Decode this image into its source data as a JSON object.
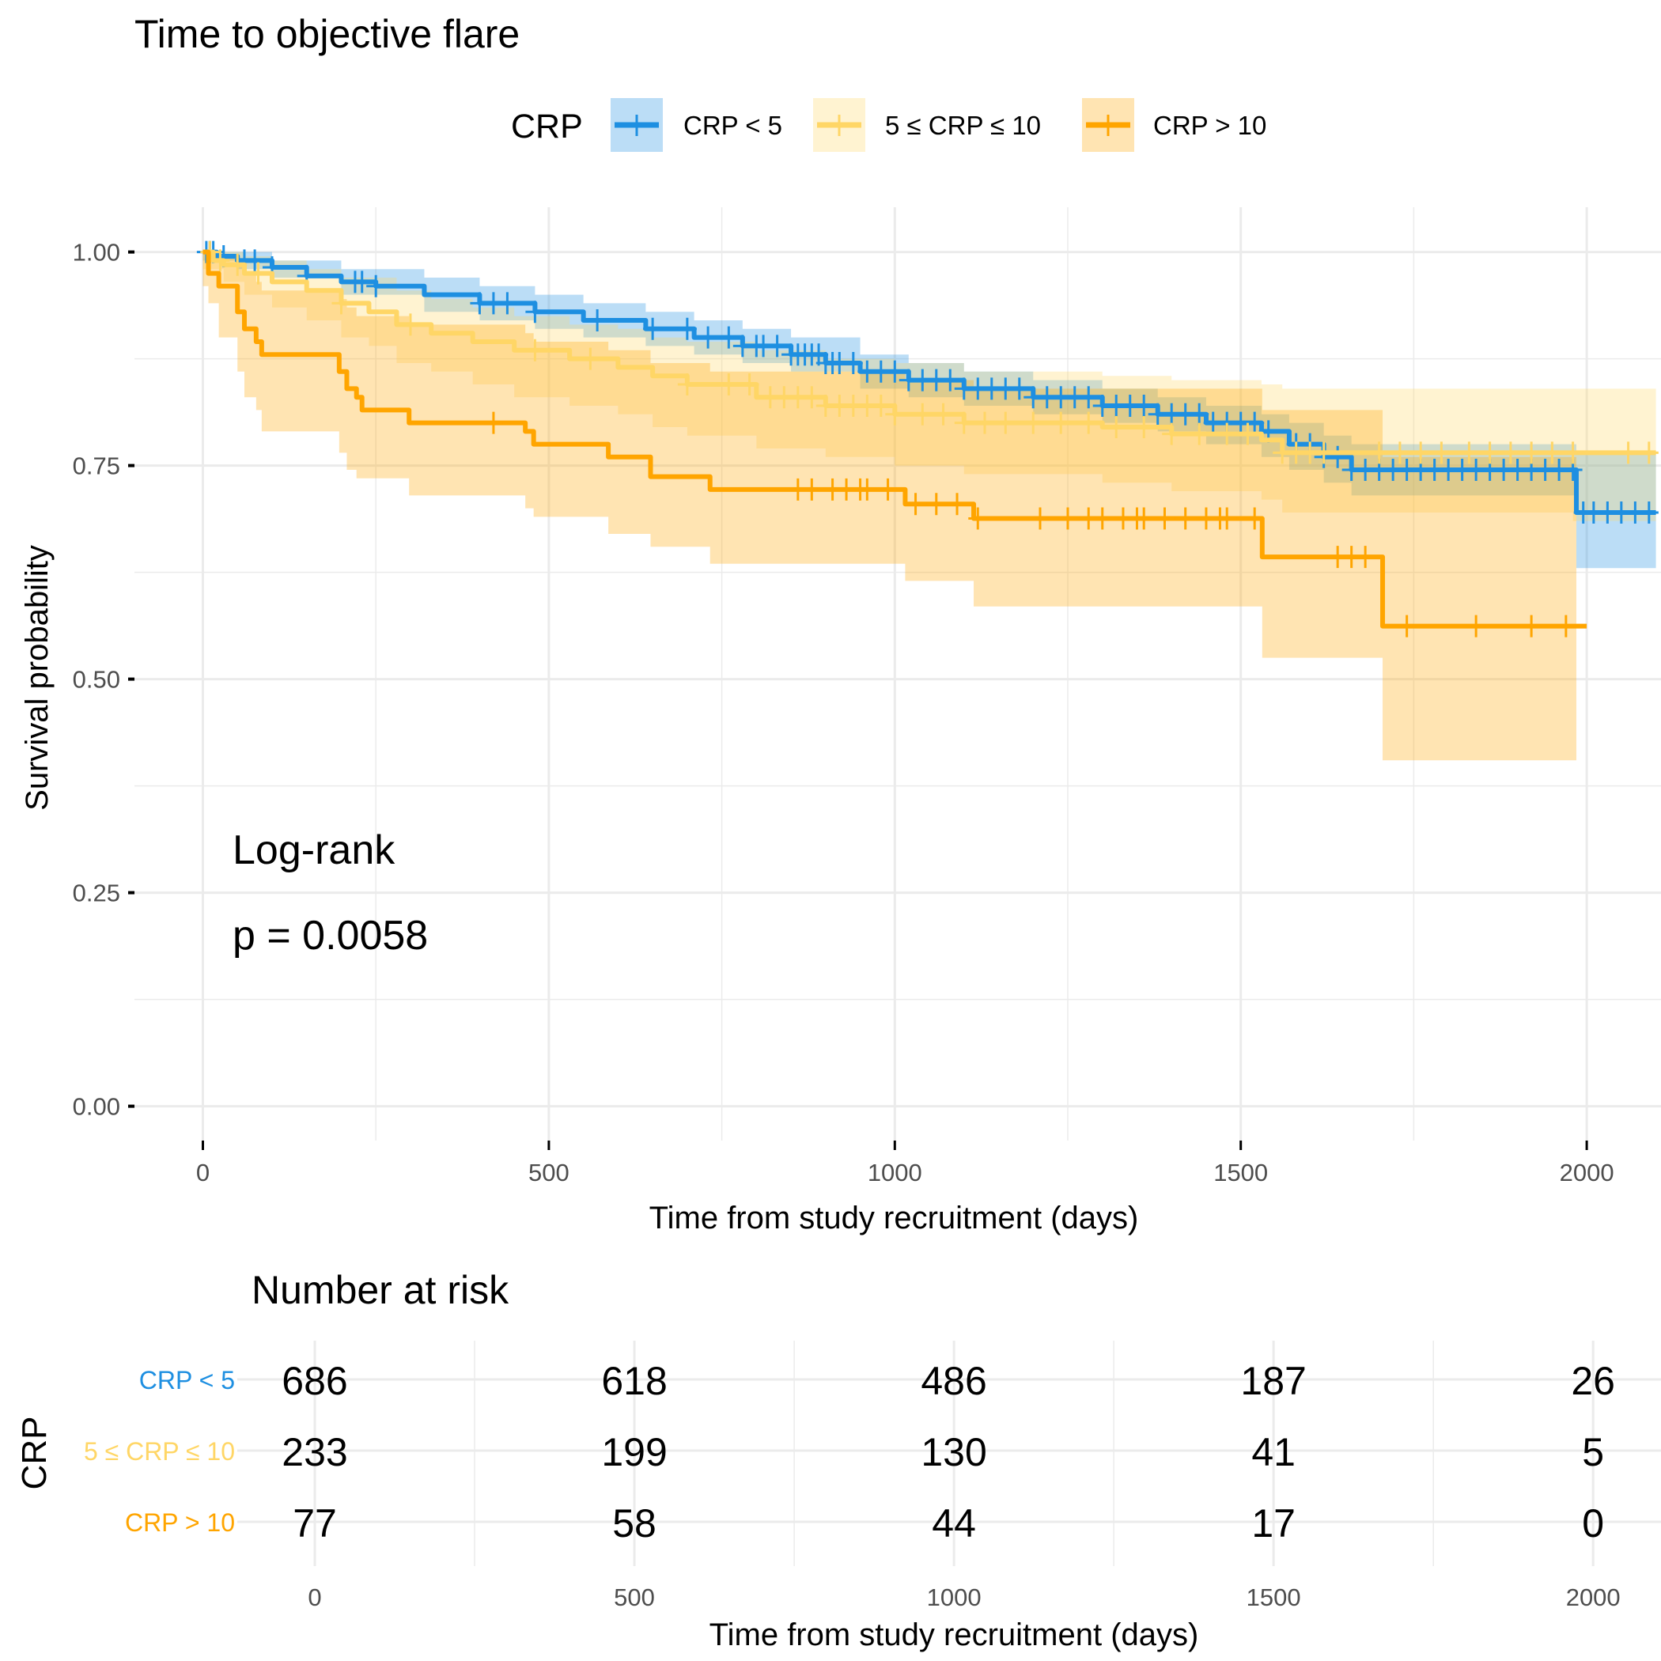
{
  "chart_data": {
    "type": "line",
    "subtype": "kaplan-meier",
    "title": "Time to objective flare",
    "xlabel": "Time from study recruitment (days)",
    "ylabel": "Survival probability",
    "xlim": [
      -100,
      2100
    ],
    "ylim": [
      -0.04,
      1.04
    ],
    "x_ticks": [
      0,
      500,
      1000,
      1500,
      2000
    ],
    "y_ticks": [
      0.0,
      0.25,
      0.5,
      0.75,
      1.0
    ],
    "y_tick_labels": [
      "0.00",
      "0.25",
      "0.50",
      "0.75",
      "1.00"
    ],
    "grid": true,
    "legend": {
      "title": "CRP",
      "position": "top",
      "entries": [
        "CRP < 5",
        "5 ≤ CRP ≤ 10",
        "CRP > 10"
      ]
    },
    "annotation": {
      "line1": "Log-rank",
      "line2": "p = 0.0058"
    },
    "series": [
      {
        "name": "CRP < 5",
        "color": "#1e8fe1",
        "fill": "#1e8fe1",
        "steps": [
          [
            0,
            1.0
          ],
          [
            20,
            0.995
          ],
          [
            50,
            0.99
          ],
          [
            100,
            0.982
          ],
          [
            150,
            0.972
          ],
          [
            200,
            0.965
          ],
          [
            250,
            0.96
          ],
          [
            320,
            0.95
          ],
          [
            400,
            0.94
          ],
          [
            480,
            0.93
          ],
          [
            550,
            0.92
          ],
          [
            640,
            0.91
          ],
          [
            710,
            0.9
          ],
          [
            780,
            0.89
          ],
          [
            850,
            0.88
          ],
          [
            900,
            0.87
          ],
          [
            950,
            0.86
          ],
          [
            1020,
            0.85
          ],
          [
            1100,
            0.84
          ],
          [
            1200,
            0.83
          ],
          [
            1300,
            0.82
          ],
          [
            1380,
            0.81
          ],
          [
            1450,
            0.8
          ],
          [
            1530,
            0.79
          ],
          [
            1570,
            0.775
          ],
          [
            1620,
            0.76
          ],
          [
            1660,
            0.745
          ],
          [
            1985,
            0.695
          ],
          [
            2100,
            0.695
          ]
        ],
        "ci_lower": [
          [
            0,
            0.99
          ],
          [
            50,
            0.98
          ],
          [
            100,
            0.97
          ],
          [
            200,
            0.95
          ],
          [
            320,
            0.93
          ],
          [
            400,
            0.92
          ],
          [
            480,
            0.91
          ],
          [
            550,
            0.9
          ],
          [
            640,
            0.89
          ],
          [
            710,
            0.88
          ],
          [
            780,
            0.87
          ],
          [
            850,
            0.86
          ],
          [
            950,
            0.84
          ],
          [
            1020,
            0.83
          ],
          [
            1100,
            0.82
          ],
          [
            1200,
            0.81
          ],
          [
            1300,
            0.8
          ],
          [
            1380,
            0.79
          ],
          [
            1450,
            0.775
          ],
          [
            1530,
            0.76
          ],
          [
            1570,
            0.745
          ],
          [
            1620,
            0.73
          ],
          [
            1660,
            0.715
          ],
          [
            1985,
            0.63
          ],
          [
            2100,
            0.63
          ]
        ],
        "ci_upper": [
          [
            0,
            1.0
          ],
          [
            50,
            1.0
          ],
          [
            100,
            0.99
          ],
          [
            200,
            0.98
          ],
          [
            320,
            0.97
          ],
          [
            400,
            0.96
          ],
          [
            480,
            0.95
          ],
          [
            550,
            0.94
          ],
          [
            640,
            0.93
          ],
          [
            710,
            0.92
          ],
          [
            780,
            0.91
          ],
          [
            850,
            0.9
          ],
          [
            950,
            0.88
          ],
          [
            1020,
            0.87
          ],
          [
            1100,
            0.86
          ],
          [
            1200,
            0.85
          ],
          [
            1300,
            0.84
          ],
          [
            1380,
            0.83
          ],
          [
            1450,
            0.82
          ],
          [
            1530,
            0.81
          ],
          [
            1570,
            0.8
          ],
          [
            1620,
            0.785
          ],
          [
            1660,
            0.775
          ],
          [
            1985,
            0.765
          ],
          [
            2100,
            0.765
          ]
        ],
        "censored": [
          5,
          10,
          15,
          30,
          60,
          75,
          100,
          150,
          220,
          230,
          250,
          400,
          420,
          440,
          480,
          570,
          650,
          700,
          730,
          760,
          780,
          800,
          810,
          830,
          850,
          860,
          870,
          880,
          890,
          900,
          910,
          920,
          940,
          960,
          980,
          1000,
          1020,
          1040,
          1060,
          1080,
          1100,
          1120,
          1140,
          1160,
          1180,
          1200,
          1220,
          1240,
          1260,
          1280,
          1300,
          1320,
          1340,
          1360,
          1380,
          1400,
          1420,
          1440,
          1460,
          1480,
          1500,
          1520,
          1540,
          1580,
          1600,
          1620,
          1640,
          1660,
          1680,
          1700,
          1720,
          1740,
          1760,
          1780,
          1800,
          1820,
          1840,
          1860,
          1880,
          1900,
          1920,
          1940,
          1960,
          1980,
          1995,
          2010,
          2030,
          2050,
          2070,
          2090
        ]
      },
      {
        "name": "5 ≤ CRP ≤ 10",
        "color": "#ffd666",
        "fill": "#ffd666",
        "steps": [
          [
            0,
            1.0
          ],
          [
            15,
            0.99
          ],
          [
            30,
            0.985
          ],
          [
            60,
            0.975
          ],
          [
            100,
            0.965
          ],
          [
            150,
            0.955
          ],
          [
            200,
            0.94
          ],
          [
            240,
            0.93
          ],
          [
            280,
            0.915
          ],
          [
            330,
            0.905
          ],
          [
            390,
            0.895
          ],
          [
            450,
            0.885
          ],
          [
            530,
            0.875
          ],
          [
            600,
            0.865
          ],
          [
            650,
            0.855
          ],
          [
            700,
            0.845
          ],
          [
            800,
            0.83
          ],
          [
            900,
            0.82
          ],
          [
            1000,
            0.81
          ],
          [
            1100,
            0.8
          ],
          [
            1300,
            0.795
          ],
          [
            1400,
            0.787
          ],
          [
            1530,
            0.78
          ],
          [
            1560,
            0.765
          ],
          [
            2100,
            0.765
          ]
        ],
        "ci_lower": [
          [
            0,
            0.98
          ],
          [
            30,
            0.965
          ],
          [
            60,
            0.95
          ],
          [
            100,
            0.935
          ],
          [
            150,
            0.92
          ],
          [
            200,
            0.9
          ],
          [
            240,
            0.89
          ],
          [
            280,
            0.87
          ],
          [
            330,
            0.86
          ],
          [
            390,
            0.845
          ],
          [
            450,
            0.83
          ],
          [
            530,
            0.82
          ],
          [
            600,
            0.81
          ],
          [
            650,
            0.795
          ],
          [
            700,
            0.785
          ],
          [
            800,
            0.77
          ],
          [
            900,
            0.76
          ],
          [
            1000,
            0.75
          ],
          [
            1100,
            0.74
          ],
          [
            1300,
            0.73
          ],
          [
            1400,
            0.72
          ],
          [
            1530,
            0.71
          ],
          [
            1560,
            0.695
          ],
          [
            1980,
            0.685
          ],
          [
            2100,
            0.685
          ]
        ],
        "ci_upper": [
          [
            0,
            1.0
          ],
          [
            60,
            0.995
          ],
          [
            100,
            0.99
          ],
          [
            150,
            0.98
          ],
          [
            200,
            0.97
          ],
          [
            280,
            0.955
          ],
          [
            330,
            0.945
          ],
          [
            390,
            0.935
          ],
          [
            450,
            0.925
          ],
          [
            530,
            0.915
          ],
          [
            600,
            0.91
          ],
          [
            650,
            0.9
          ],
          [
            700,
            0.895
          ],
          [
            800,
            0.885
          ],
          [
            900,
            0.875
          ],
          [
            1000,
            0.87
          ],
          [
            1100,
            0.86
          ],
          [
            1300,
            0.855
          ],
          [
            1400,
            0.85
          ],
          [
            1530,
            0.845
          ],
          [
            1560,
            0.84
          ],
          [
            2100,
            0.84
          ]
        ],
        "censored": [
          10,
          25,
          50,
          80,
          200,
          300,
          480,
          560,
          700,
          760,
          790,
          820,
          840,
          860,
          880,
          900,
          920,
          940,
          960,
          980,
          1000,
          1040,
          1070,
          1100,
          1130,
          1160,
          1200,
          1240,
          1280,
          1320,
          1360,
          1400,
          1440,
          1480,
          1510,
          1560,
          1580,
          1600,
          1620,
          1700,
          1730,
          1760,
          1790,
          1830,
          1860,
          1890,
          1920,
          1950,
          1980,
          2060,
          2090
        ]
      },
      {
        "name": "CRP > 10",
        "color": "#ffa500",
        "fill": "#ffa500",
        "steps": [
          [
            0,
            1.0
          ],
          [
            8,
            0.975
          ],
          [
            23,
            0.96
          ],
          [
            50,
            0.93
          ],
          [
            60,
            0.91
          ],
          [
            77,
            0.895
          ],
          [
            85,
            0.88
          ],
          [
            197,
            0.86
          ],
          [
            208,
            0.84
          ],
          [
            222,
            0.83
          ],
          [
            230,
            0.815
          ],
          [
            298,
            0.8
          ],
          [
            466,
            0.79
          ],
          [
            478,
            0.775
          ],
          [
            586,
            0.76
          ],
          [
            647,
            0.737
          ],
          [
            733,
            0.722
          ],
          [
            1015,
            0.705
          ],
          [
            1114,
            0.688
          ],
          [
            1531,
            0.643
          ],
          [
            1705,
            0.562
          ],
          [
            2000,
            0.562
          ]
        ],
        "ci_lower": [
          [
            0,
            0.96
          ],
          [
            8,
            0.94
          ],
          [
            23,
            0.9
          ],
          [
            50,
            0.86
          ],
          [
            60,
            0.83
          ],
          [
            77,
            0.815
          ],
          [
            85,
            0.79
          ],
          [
            197,
            0.765
          ],
          [
            208,
            0.745
          ],
          [
            222,
            0.735
          ],
          [
            298,
            0.715
          ],
          [
            466,
            0.7
          ],
          [
            478,
            0.69
          ],
          [
            586,
            0.67
          ],
          [
            647,
            0.655
          ],
          [
            733,
            0.635
          ],
          [
            1015,
            0.615
          ],
          [
            1114,
            0.585
          ],
          [
            1531,
            0.525
          ],
          [
            1705,
            0.405
          ],
          [
            1985,
            0.405
          ]
        ],
        "ci_upper": [
          [
            0,
            1.0
          ],
          [
            8,
            1.0
          ],
          [
            23,
            0.995
          ],
          [
            50,
            0.985
          ],
          [
            60,
            0.975
          ],
          [
            77,
            0.965
          ],
          [
            85,
            0.955
          ],
          [
            197,
            0.945
          ],
          [
            208,
            0.935
          ],
          [
            222,
            0.925
          ],
          [
            298,
            0.915
          ],
          [
            466,
            0.905
          ],
          [
            478,
            0.895
          ],
          [
            586,
            0.885
          ],
          [
            647,
            0.87
          ],
          [
            733,
            0.86
          ],
          [
            1015,
            0.85
          ],
          [
            1114,
            0.84
          ],
          [
            1531,
            0.815
          ],
          [
            1705,
            0.76
          ],
          [
            1985,
            0.76
          ]
        ],
        "censored": [
          420,
          860,
          880,
          910,
          930,
          950,
          960,
          990,
          1030,
          1060,
          1090,
          1120,
          1210,
          1250,
          1280,
          1300,
          1330,
          1350,
          1360,
          1390,
          1420,
          1450,
          1470,
          1480,
          1520,
          1640,
          1660,
          1680,
          1740,
          1840,
          1920,
          1970
        ]
      }
    ]
  },
  "risk_table": {
    "title": "Number at risk",
    "ylabel": "CRP",
    "xlabel": "Time from study recruitment (days)",
    "times": [
      0,
      500,
      1000,
      1500,
      2000
    ],
    "time_labels": [
      "0",
      "500",
      "1000",
      "1500",
      "2000"
    ],
    "rows": [
      {
        "label": "CRP < 5",
        "color": "#1e8fe1",
        "values": [
          "686",
          "618",
          "486",
          "187",
          "26"
        ]
      },
      {
        "label": "5 ≤ CRP ≤ 10",
        "color": "#ffd666",
        "values": [
          "233",
          "199",
          "130",
          "41",
          "5"
        ]
      },
      {
        "label": "CRP > 10",
        "color": "#ffa500",
        "values": [
          "77",
          "58",
          "44",
          "17",
          "0"
        ]
      }
    ]
  }
}
